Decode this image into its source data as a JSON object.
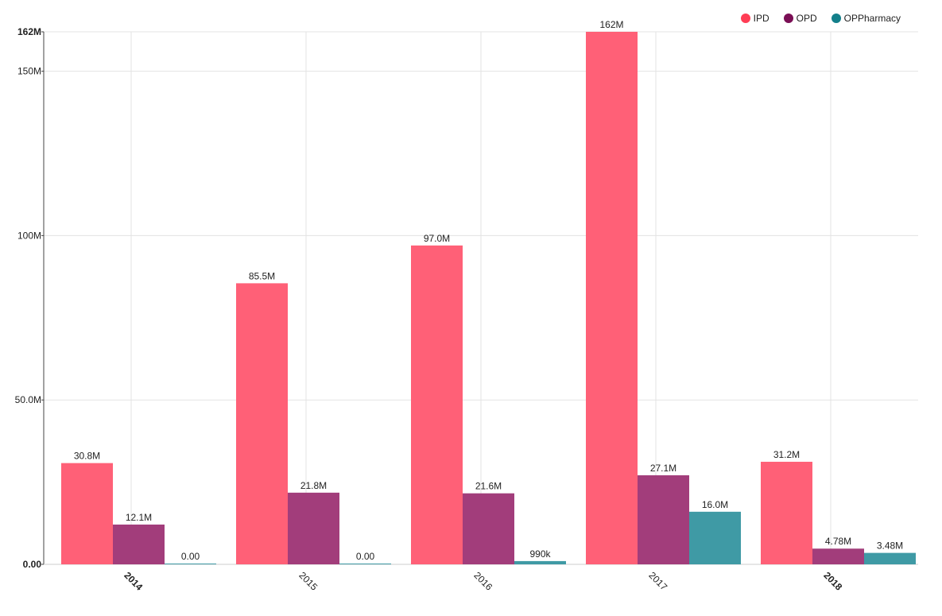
{
  "colors": {
    "IPD": "#ff6077",
    "OPD": "#a23d7b",
    "OPPharmacy": "#3f9aa5",
    "legend_IPD": "#ff3d55",
    "legend_OPD": "#7a0f55",
    "legend_OPPharmacy": "#137f8a"
  },
  "legend": [
    {
      "key": "IPD",
      "label": "IPD"
    },
    {
      "key": "OPD",
      "label": "OPD"
    },
    {
      "key": "OPPharmacy",
      "label": "OPPharmacy"
    }
  ],
  "chart_data": {
    "type": "bar",
    "title": "",
    "xlabel": "",
    "ylabel": "",
    "categories": [
      "2014",
      "2015",
      "2016",
      "2017",
      "2018"
    ],
    "bold_categories": [
      "2014",
      "2018"
    ],
    "series": [
      {
        "name": "IPD",
        "values": [
          30800000,
          85500000,
          97000000,
          162000000,
          31200000
        ],
        "labels": [
          "30.8M",
          "85.5M",
          "97.0M",
          "162M",
          "31.2M"
        ]
      },
      {
        "name": "OPD",
        "values": [
          12100000,
          21800000,
          21600000,
          27100000,
          4780000
        ],
        "labels": [
          "12.1M",
          "21.8M",
          "21.6M",
          "27.1M",
          "4.78M"
        ]
      },
      {
        "name": "OPPharmacy",
        "values": [
          0,
          0,
          990000,
          16000000,
          3480000
        ],
        "labels": [
          "0.00",
          "0.00",
          "990k",
          "16.0M",
          "3.48M"
        ]
      }
    ],
    "ylim": [
      0,
      162000000
    ],
    "yticks": [
      {
        "value": 0,
        "label": "0.00",
        "bold": true
      },
      {
        "value": 50000000,
        "label": "50.0M",
        "bold": false
      },
      {
        "value": 100000000,
        "label": "100M",
        "bold": false
      },
      {
        "value": 150000000,
        "label": "150M",
        "bold": false
      },
      {
        "value": 162000000,
        "label": "162M",
        "bold": true
      }
    ],
    "grid": true,
    "legend_position": "top-right"
  }
}
